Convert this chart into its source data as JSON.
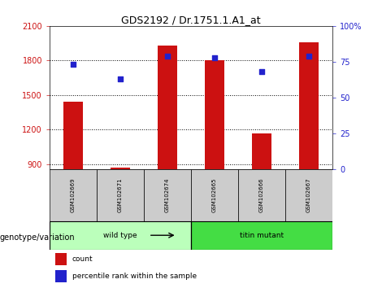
{
  "title": "GDS2192 / Dr.1751.1.A1_at",
  "samples": [
    "GSM102669",
    "GSM102671",
    "GSM102674",
    "GSM102665",
    "GSM102666",
    "GSM102667"
  ],
  "counts": [
    1440,
    870,
    1930,
    1800,
    1170,
    1960
  ],
  "percentile_ranks": [
    73,
    63,
    79,
    78,
    68,
    79
  ],
  "ylim_left": [
    860,
    2100
  ],
  "ylim_right": [
    0,
    100
  ],
  "yticks_left": [
    900,
    1200,
    1500,
    1800,
    2100
  ],
  "yticks_right": [
    0,
    25,
    50,
    75,
    100
  ],
  "ytick_labels_right": [
    "0",
    "25",
    "50",
    "75",
    "100%"
  ],
  "grid_lines": [
    900,
    1200,
    1500,
    1800
  ],
  "bar_color": "#cc1111",
  "dot_color": "#2222cc",
  "bar_width": 0.4,
  "groups": [
    {
      "label": "wild type",
      "indices": [
        0,
        1,
        2
      ],
      "color": "#bbffbb"
    },
    {
      "label": "titin mutant",
      "indices": [
        3,
        4,
        5
      ],
      "color": "#44dd44"
    }
  ],
  "xlabel_genotype": "genotype/variation",
  "legend_count_label": "count",
  "legend_pct_label": "percentile rank within the sample",
  "sample_box_color": "#cccccc",
  "title_fontsize": 9,
  "tick_fontsize": 7,
  "label_fontsize": 7
}
